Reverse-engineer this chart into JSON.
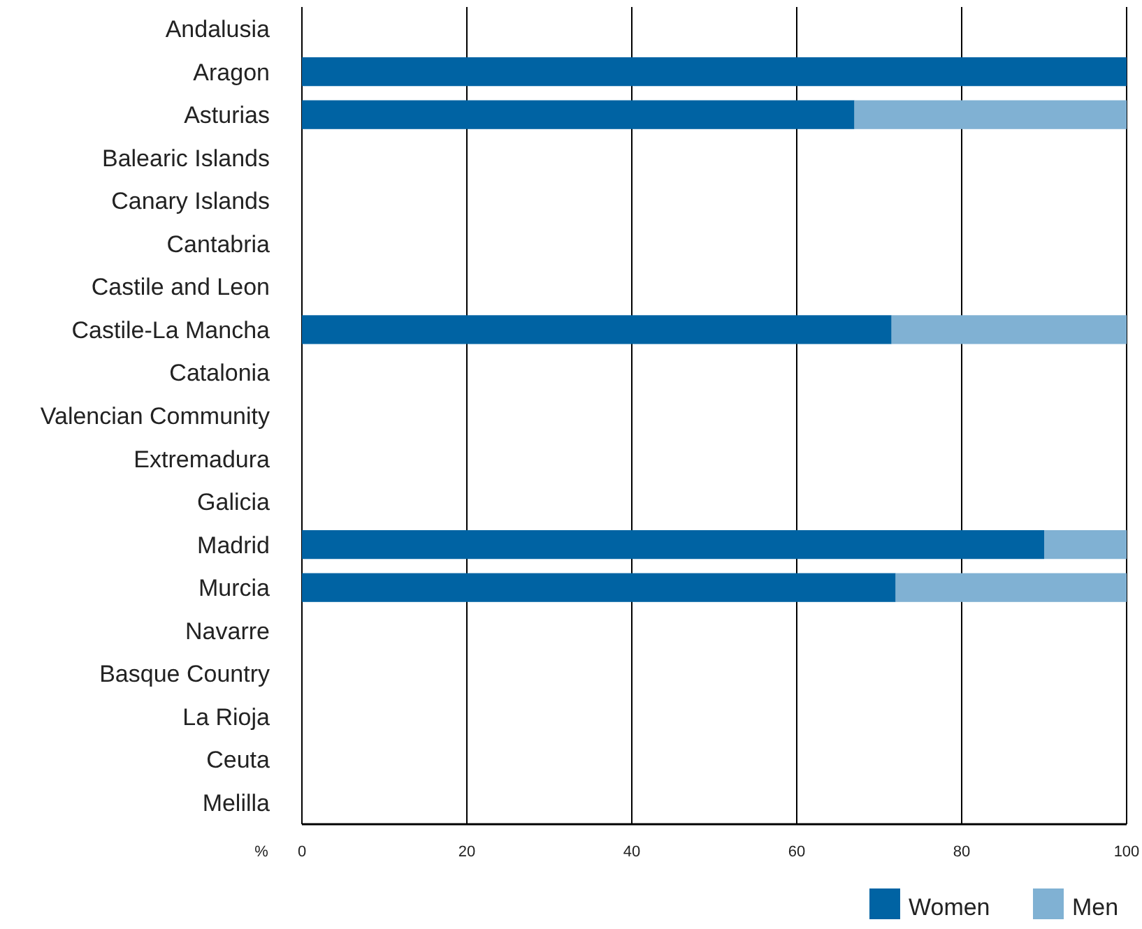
{
  "chart_data": {
    "type": "bar",
    "orientation": "horizontal",
    "stacked": true,
    "xlabel": "%",
    "categories": [
      "Andalusia",
      "Aragon",
      "Asturias",
      "Balearic Islands",
      "Canary Islands",
      "Cantabria",
      "Castile and Leon",
      "Castile-La Mancha",
      "Catalonia",
      "Valencian Community",
      "Extremadura",
      "Galicia",
      "Madrid",
      "Murcia",
      "Navarre",
      "Basque Country",
      "La Rioja",
      "Ceuta",
      "Melilla"
    ],
    "series": [
      {
        "name": "Women",
        "color": "#0063a3",
        "values": [
          null,
          100,
          67,
          null,
          null,
          null,
          null,
          71.5,
          null,
          null,
          null,
          null,
          90,
          72,
          null,
          null,
          null,
          null,
          null
        ]
      },
      {
        "name": "Men",
        "color": "#80b1d3",
        "values": [
          null,
          0,
          33,
          null,
          null,
          null,
          null,
          28.5,
          null,
          null,
          null,
          null,
          10,
          28,
          null,
          null,
          null,
          null,
          null
        ]
      }
    ],
    "xlim": [
      0,
      100
    ],
    "xticks": [
      0,
      20,
      40,
      60,
      80,
      100
    ],
    "grid": "x",
    "legend": "bottom right"
  }
}
